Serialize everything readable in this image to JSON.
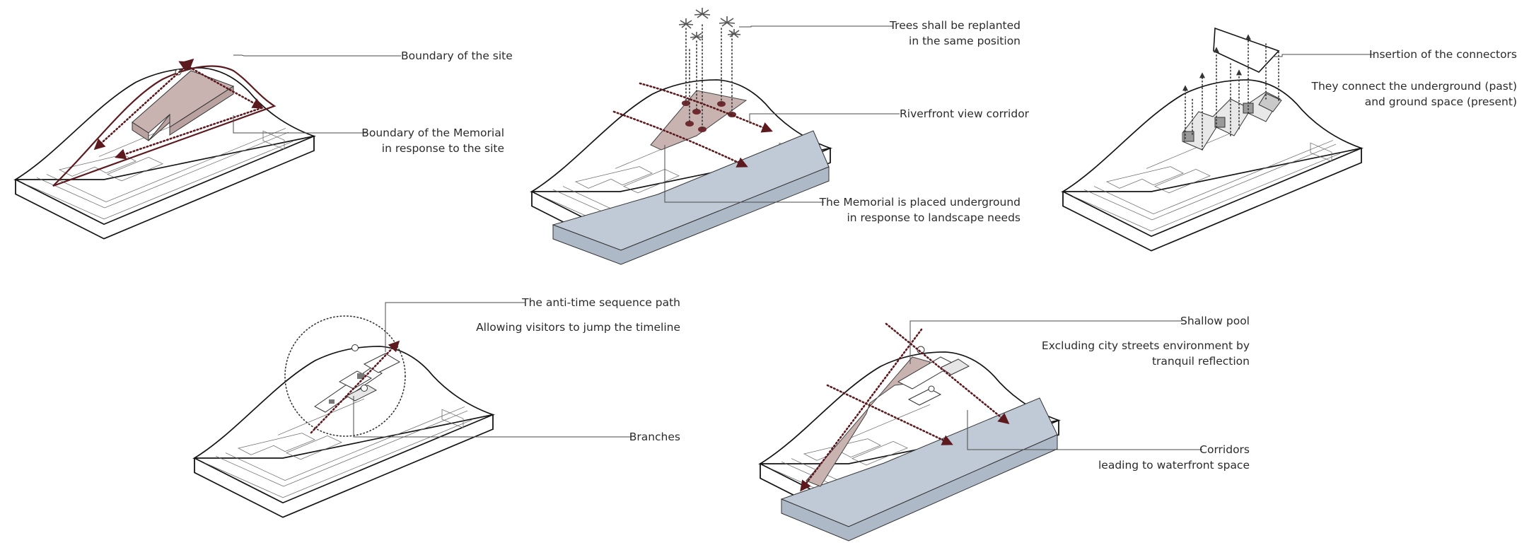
{
  "labels": {
    "boundary_site": "Boundary of the site",
    "boundary_memorial_1": "Boundary of the Memorial",
    "boundary_memorial_2": "in response to the site",
    "trees_1": "Trees shall be replanted",
    "trees_2": "in the same position",
    "riverfront": "Riverfront view corridor",
    "underground_1": "The Memorial is placed underground",
    "underground_2": "in response to landscape needs",
    "connectors_title": "Insertion of the connectors",
    "connectors_1": "They connect the underground (past)",
    "connectors_2": "and ground space (present)",
    "antitime_title": "The anti-time sequence path",
    "antitime_desc": "Allowing visitors to jump the timeline",
    "branches": "Branches",
    "pool_title": "Shallow pool",
    "pool_desc_1": "Excluding city streets environment by",
    "pool_desc_2": "tranquil reflection",
    "corridors_1": "Corridors",
    "corridors_2": "leading to waterfront space"
  },
  "colors": {
    "outline": "#141414",
    "maroon": "#5c1a1f",
    "memorial_fill": "#c9b3b1",
    "water_fill": "#c0c9d6",
    "leader": "#4a4a4a",
    "text": "#2b2b2b"
  }
}
